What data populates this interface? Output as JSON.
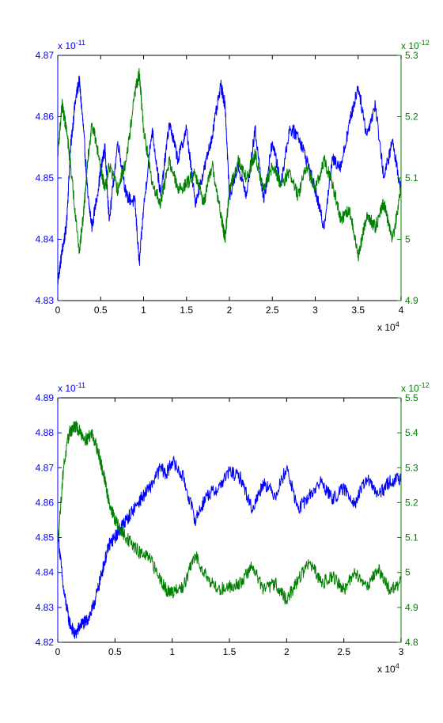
{
  "colors": {
    "left_axis": "#0000ff",
    "right_axis": "#008000",
    "box": "#000000",
    "background": "#ffffff"
  },
  "chart_data": [
    {
      "type": "line",
      "grid": false,
      "x_ticks": [
        "0",
        "0.5",
        "1",
        "1.5",
        "2",
        "2.5",
        "3",
        "3.5",
        "4"
      ],
      "x_ticks_values": [
        0,
        5000,
        10000,
        15000,
        20000,
        25000,
        30000,
        35000,
        40000
      ],
      "x_exponent": {
        "base": "x 10",
        "power": "4"
      },
      "xlim": [
        0,
        40000
      ],
      "y_left": {
        "ticks": [
          "4.83",
          "4.84",
          "4.85",
          "4.86",
          "4.87"
        ],
        "exponent": {
          "base": "x 10",
          "power": "-11"
        },
        "ylim": [
          4.83e-11,
          4.87e-11
        ]
      },
      "y_right": {
        "ticks": [
          "4.9",
          "5",
          "5.1",
          "5.2",
          "5.3"
        ],
        "exponent": {
          "base": "x 10",
          "power": "-12"
        },
        "ylim": [
          4.9e-12,
          5.3e-12
        ]
      },
      "series": [
        {
          "axis": "left",
          "color": "#0000ff",
          "x": [
            0,
            500,
            1000,
            1500,
            2000,
            2500,
            3000,
            3500,
            4000,
            5000,
            5500,
            6000,
            7000,
            8000,
            9000,
            9500,
            10000,
            11000,
            12000,
            13000,
            14000,
            15000,
            16000,
            17000,
            18000,
            19000,
            19500,
            20000,
            21000,
            22000,
            23000,
            24000,
            25000,
            26000,
            27000,
            28000,
            29000,
            30000,
            31000,
            32000,
            33000,
            34000,
            35000,
            36000,
            37000,
            38000,
            39000,
            40000
          ],
          "y": [
            4.833e-11,
            4.838e-11,
            4.842e-11,
            4.855e-11,
            4.862e-11,
            4.866e-11,
            4.858e-11,
            4.847e-11,
            4.842e-11,
            4.851e-11,
            4.855e-11,
            4.843e-11,
            4.856e-11,
            4.847e-11,
            4.846e-11,
            4.836e-11,
            4.845e-11,
            4.858e-11,
            4.847e-11,
            4.859e-11,
            4.853e-11,
            4.858e-11,
            4.846e-11,
            4.851e-11,
            4.857e-11,
            4.865e-11,
            4.862e-11,
            4.847e-11,
            4.852e-11,
            4.847e-11,
            4.858e-11,
            4.846e-11,
            4.856e-11,
            4.849e-11,
            4.858e-11,
            4.857e-11,
            4.853e-11,
            4.848e-11,
            4.842e-11,
            4.853e-11,
            4.852e-11,
            4.859e-11,
            4.865e-11,
            4.857e-11,
            4.862e-11,
            4.85e-11,
            4.856e-11,
            4.848e-11
          ]
        },
        {
          "axis": "right",
          "color": "#008000",
          "x": [
            0,
            500,
            1000,
            1500,
            2000,
            2500,
            3000,
            3500,
            4000,
            5000,
            5500,
            6000,
            7000,
            8000,
            9000,
            9500,
            10000,
            11000,
            12000,
            13000,
            14000,
            15000,
            16000,
            17000,
            18000,
            19000,
            19500,
            20000,
            21000,
            22000,
            23000,
            24000,
            25000,
            26000,
            27000,
            28000,
            29000,
            30000,
            31000,
            32000,
            33000,
            34000,
            35000,
            36000,
            37000,
            38000,
            39000,
            40000
          ],
          "y": [
            5.14e-12,
            5.22e-12,
            5.18e-12,
            5.12e-12,
            5.05e-12,
            4.98e-12,
            5.04e-12,
            5.13e-12,
            5.19e-12,
            5.12e-12,
            5.08e-12,
            5.12e-12,
            5.08e-12,
            5.13e-12,
            5.24e-12,
            5.27e-12,
            5.18e-12,
            5.09e-12,
            5.06e-12,
            5.13e-12,
            5.08e-12,
            5.09e-12,
            5.11e-12,
            5.06e-12,
            5.12e-12,
            5.04e-12,
            5e-12,
            5.08e-12,
            5.13e-12,
            5.1e-12,
            5.14e-12,
            5.08e-12,
            5.12e-12,
            5.09e-12,
            5.11e-12,
            5.07e-12,
            5.12e-12,
            5.08e-12,
            5.13e-12,
            5.09e-12,
            5.03e-12,
            5.05e-12,
            4.97e-12,
            5.04e-12,
            5.02e-12,
            5.06e-12,
            5e-12,
            5.08e-12
          ]
        }
      ]
    },
    {
      "type": "line",
      "grid": false,
      "x_ticks": [
        "0",
        "0.5",
        "1",
        "1.5",
        "2",
        "2.5",
        "3"
      ],
      "x_ticks_values": [
        0,
        5000,
        10000,
        15000,
        20000,
        25000,
        30000
      ],
      "x_exponent": {
        "base": "x 10",
        "power": "4"
      },
      "xlim": [
        0,
        30000
      ],
      "y_left": {
        "ticks": [
          "4.82",
          "4.83",
          "4.84",
          "4.85",
          "4.86",
          "4.87",
          "4.88",
          "4.89"
        ],
        "exponent": {
          "base": "x 10",
          "power": "-11"
        },
        "ylim": [
          4.82e-11,
          4.89e-11
        ]
      },
      "y_right": {
        "ticks": [
          "4.8",
          "4.9",
          "5",
          "5.1",
          "5.2",
          "5.3",
          "5.4",
          "5.5"
        ],
        "exponent": {
          "base": "x 10",
          "power": "-12"
        },
        "ylim": [
          4.8e-12,
          5.5e-12
        ]
      },
      "series": [
        {
          "axis": "left",
          "color": "#0000ff",
          "x": [
            0,
            500,
            1000,
            1500,
            2000,
            2500,
            3000,
            3500,
            4000,
            4500,
            5000,
            5500,
            6000,
            7000,
            8000,
            9000,
            9500,
            10000,
            11000,
            12000,
            13000,
            14000,
            15000,
            16000,
            17000,
            18000,
            19000,
            20000,
            21000,
            22000,
            23000,
            24000,
            25000,
            26000,
            27000,
            28000,
            29000,
            30000
          ],
          "y": [
            4.852e-11,
            4.835e-11,
            4.826e-11,
            4.822e-11,
            4.825e-11,
            4.826e-11,
            4.829e-11,
            4.835e-11,
            4.842e-11,
            4.848e-11,
            4.85e-11,
            4.853e-11,
            4.855e-11,
            4.86e-11,
            4.864e-11,
            4.87e-11,
            4.868e-11,
            4.872e-11,
            4.867e-11,
            4.855e-11,
            4.862e-11,
            4.864e-11,
            4.869e-11,
            4.867e-11,
            4.858e-11,
            4.866e-11,
            4.862e-11,
            4.87e-11,
            4.858e-11,
            4.862e-11,
            4.866e-11,
            4.861e-11,
            4.864e-11,
            4.86e-11,
            4.867e-11,
            4.862e-11,
            4.866e-11,
            4.867e-11
          ]
        },
        {
          "axis": "right",
          "color": "#008000",
          "x": [
            0,
            500,
            1000,
            1500,
            2000,
            2500,
            3000,
            3500,
            4000,
            4500,
            5000,
            5500,
            6000,
            7000,
            8000,
            9000,
            9500,
            10000,
            11000,
            12000,
            13000,
            14000,
            15000,
            16000,
            17000,
            18000,
            19000,
            20000,
            21000,
            22000,
            23000,
            24000,
            25000,
            26000,
            27000,
            28000,
            29000,
            30000
          ],
          "y": [
            5.08e-12,
            5.3e-12,
            5.4e-12,
            5.42e-12,
            5.4e-12,
            5.38e-12,
            5.4e-12,
            5.35e-12,
            5.28e-12,
            5.2e-12,
            5.15e-12,
            5.12e-12,
            5.1e-12,
            5.06e-12,
            5.04e-12,
            4.98e-12,
            4.95e-12,
            4.94e-12,
            4.96e-12,
            5.05e-12,
            4.99e-12,
            4.95e-12,
            4.96e-12,
            4.97e-12,
            5.02e-12,
            4.95e-12,
            4.97e-12,
            4.92e-12,
            4.98e-12,
            5.03e-12,
            4.97e-12,
            4.99e-12,
            4.95e-12,
            5e-12,
            4.96e-12,
            5.01e-12,
            4.95e-12,
            4.97e-12
          ]
        }
      ]
    }
  ]
}
